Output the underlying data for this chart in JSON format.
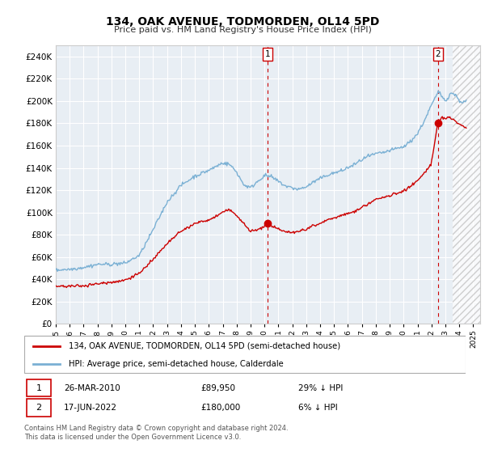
{
  "title": "134, OAK AVENUE, TODMORDEN, OL14 5PD",
  "subtitle": "Price paid vs. HM Land Registry's House Price Index (HPI)",
  "ylim": [
    0,
    250000
  ],
  "yticks": [
    0,
    20000,
    40000,
    60000,
    80000,
    100000,
    120000,
    140000,
    160000,
    180000,
    200000,
    220000,
    240000
  ],
  "sale1_date": "26-MAR-2010",
  "sale1_price": 89950,
  "sale1_label": "£89,950",
  "sale1_pct": "29% ↓ HPI",
  "sale2_date": "17-JUN-2022",
  "sale2_price": 180000,
  "sale2_label": "£180,000",
  "sale2_pct": "6% ↓ HPI",
  "red_line_color": "#cc0000",
  "blue_line_color": "#7ab0d4",
  "dashed_line_color": "#cc0000",
  "grid_color": "#cccccc",
  "chart_bg_color": "#e8eef4",
  "hatch_region_start": 2023.5,
  "xlim_start": 1995.0,
  "xlim_end": 2025.5,
  "legend_label_red": "134, OAK AVENUE, TODMORDEN, OL14 5PD (semi-detached house)",
  "legend_label_blue": "HPI: Average price, semi-detached house, Calderdale",
  "footnote": "Contains HM Land Registry data © Crown copyright and database right 2024.\nThis data is licensed under the Open Government Licence v3.0.",
  "hpi_anchors": [
    [
      1995.0,
      48000
    ],
    [
      1996.0,
      49000
    ],
    [
      1997.0,
      51000
    ],
    [
      1998.0,
      54000
    ],
    [
      1999.0,
      54000
    ],
    [
      2000.0,
      55000
    ],
    [
      2001.0,
      62000
    ],
    [
      2002.0,
      85000
    ],
    [
      2003.0,
      110000
    ],
    [
      2004.0,
      125000
    ],
    [
      2005.0,
      133000
    ],
    [
      2006.0,
      138000
    ],
    [
      2007.0,
      145000
    ],
    [
      2007.5,
      143000
    ],
    [
      2008.0,
      136000
    ],
    [
      2008.5,
      125000
    ],
    [
      2009.0,
      122000
    ],
    [
      2009.5,
      128000
    ],
    [
      2010.0,
      133000
    ],
    [
      2010.5,
      132000
    ],
    [
      2011.0,
      128000
    ],
    [
      2011.5,
      124000
    ],
    [
      2012.0,
      122000
    ],
    [
      2012.5,
      121000
    ],
    [
      2013.0,
      123000
    ],
    [
      2013.5,
      127000
    ],
    [
      2014.0,
      130000
    ],
    [
      2014.5,
      133000
    ],
    [
      2015.0,
      135000
    ],
    [
      2015.5,
      137000
    ],
    [
      2016.0,
      140000
    ],
    [
      2016.5,
      143000
    ],
    [
      2017.0,
      147000
    ],
    [
      2017.5,
      150000
    ],
    [
      2018.0,
      152000
    ],
    [
      2018.5,
      153000
    ],
    [
      2019.0,
      155000
    ],
    [
      2019.5,
      157000
    ],
    [
      2020.0,
      158000
    ],
    [
      2020.5,
      163000
    ],
    [
      2021.0,
      170000
    ],
    [
      2021.5,
      182000
    ],
    [
      2022.0,
      196000
    ],
    [
      2022.3,
      203000
    ],
    [
      2022.5,
      208000
    ],
    [
      2022.7,
      205000
    ],
    [
      2023.0,
      200000
    ],
    [
      2023.3,
      205000
    ],
    [
      2023.5,
      207000
    ],
    [
      2023.8,
      204000
    ],
    [
      2024.0,
      200000
    ],
    [
      2024.3,
      198000
    ],
    [
      2024.5,
      200000
    ]
  ],
  "red_anchors": [
    [
      1995.0,
      35000
    ],
    [
      1996.0,
      34500
    ],
    [
      1997.0,
      35000
    ],
    [
      1998.0,
      36500
    ],
    [
      1999.0,
      38000
    ],
    [
      2000.0,
      40000
    ],
    [
      2001.0,
      46000
    ],
    [
      2002.0,
      58000
    ],
    [
      2003.0,
      72000
    ],
    [
      2004.0,
      83000
    ],
    [
      2005.0,
      90000
    ],
    [
      2006.0,
      93000
    ],
    [
      2007.0,
      100000
    ],
    [
      2007.5,
      103000
    ],
    [
      2008.0,
      97000
    ],
    [
      2008.5,
      90000
    ],
    [
      2009.0,
      83000
    ],
    [
      2009.5,
      84000
    ],
    [
      2010.25,
      89950
    ],
    [
      2010.5,
      88000
    ],
    [
      2011.0,
      85000
    ],
    [
      2011.5,
      83000
    ],
    [
      2012.0,
      82000
    ],
    [
      2012.5,
      83000
    ],
    [
      2013.0,
      85000
    ],
    [
      2013.5,
      88000
    ],
    [
      2014.0,
      90000
    ],
    [
      2014.5,
      93000
    ],
    [
      2015.0,
      95000
    ],
    [
      2015.5,
      97000
    ],
    [
      2016.0,
      99000
    ],
    [
      2016.5,
      101000
    ],
    [
      2017.0,
      105000
    ],
    [
      2017.5,
      108000
    ],
    [
      2018.0,
      112000
    ],
    [
      2018.5,
      113000
    ],
    [
      2019.0,
      115000
    ],
    [
      2019.5,
      117000
    ],
    [
      2020.0,
      119000
    ],
    [
      2020.5,
      123000
    ],
    [
      2021.0,
      128000
    ],
    [
      2021.5,
      135000
    ],
    [
      2022.0,
      143000
    ],
    [
      2022.46,
      180000
    ],
    [
      2022.6,
      182000
    ],
    [
      2022.8,
      185000
    ],
    [
      2023.0,
      183000
    ],
    [
      2023.3,
      185000
    ],
    [
      2023.6,
      182000
    ],
    [
      2023.8,
      180000
    ],
    [
      2024.0,
      178000
    ],
    [
      2024.3,
      176000
    ],
    [
      2024.5,
      175000
    ]
  ]
}
